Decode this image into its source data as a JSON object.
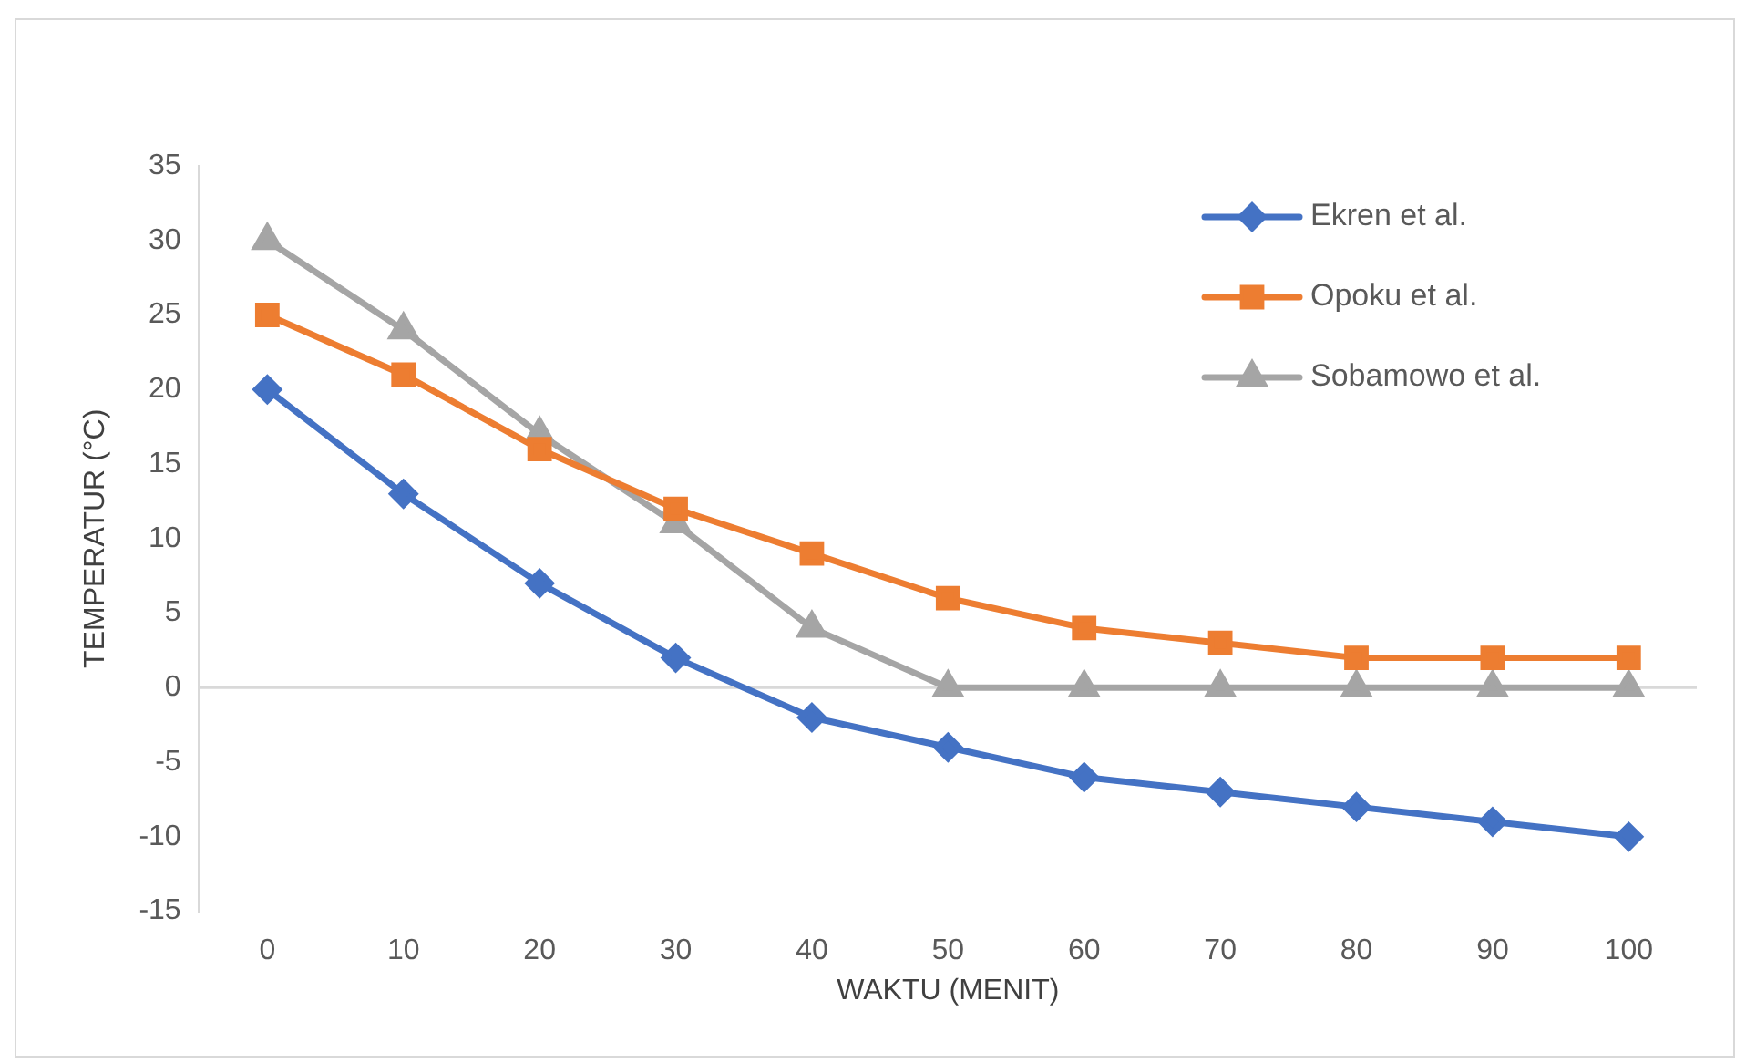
{
  "chart_data": {
    "type": "line",
    "xlabel": "WAKTU (MENIT)",
    "ylabel": "TEMPERATUR (°C)",
    "categories": [
      "0",
      "10",
      "20",
      "30",
      "40",
      "50",
      "60",
      "70",
      "80",
      "90",
      "100"
    ],
    "series": [
      {
        "name": "Ekren et al.",
        "color": "#4472c4",
        "marker": "diamond",
        "values": [
          20,
          13,
          7,
          2,
          -2,
          -4,
          -6,
          -7,
          -8,
          -9,
          -10
        ]
      },
      {
        "name": "Opoku et al.",
        "color": "#ed7d31",
        "marker": "square",
        "values": [
          25,
          21,
          16,
          12,
          9,
          6,
          4,
          3,
          2,
          2,
          2
        ]
      },
      {
        "name": "Sobamowo et al.",
        "color": "#a5a5a5",
        "marker": "triangle",
        "values": [
          30,
          24,
          17,
          11,
          4,
          0,
          0,
          0,
          0,
          0,
          0
        ]
      }
    ],
    "ylim": [
      -15,
      35
    ],
    "yticks": [
      -15,
      -10,
      -5,
      0,
      5,
      10,
      15,
      20,
      25,
      30,
      35
    ],
    "ref_lines": [
      {
        "axis": "y",
        "value": 0,
        "color": "#d9d9d9"
      }
    ],
    "grid": false,
    "legend": "top right"
  }
}
